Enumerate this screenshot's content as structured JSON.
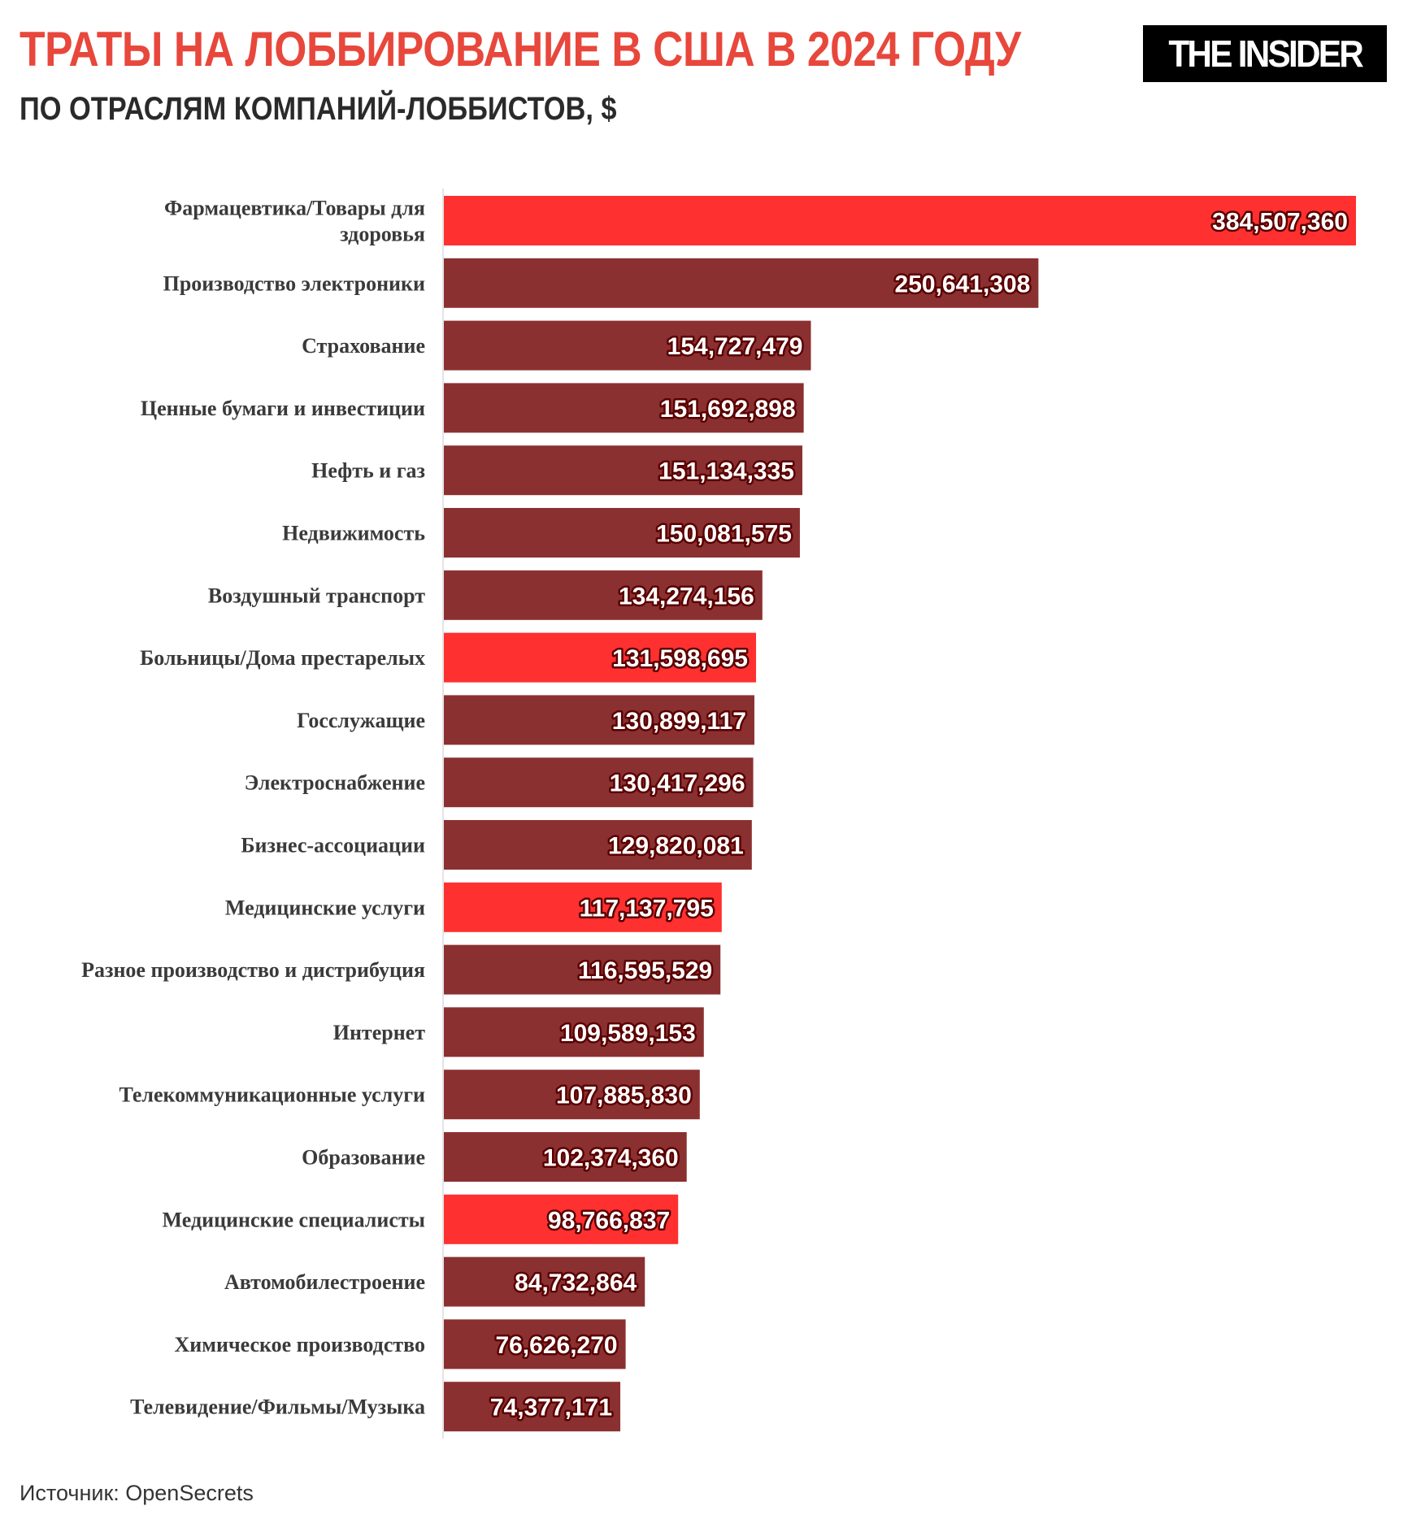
{
  "header": {
    "title": "ТРАТЫ НА ЛОББИРОВАНИЕ В США В 2024 ГОДУ",
    "subtitle": "ПО ОТРАСЛЯМ КОМПАНИЙ-ЛОББИСТОВ, $",
    "logo": "THE INSIDER"
  },
  "footer": {
    "source": "Источник: OpenSecrets"
  },
  "colors": {
    "title": "#e8473c",
    "highlight": "#ff3030",
    "default": "#8b3030"
  },
  "chart_data": {
    "type": "bar",
    "orientation": "horizontal",
    "title": "ТРАТЫ НА ЛОББИРОВАНИЕ В США В 2024 ГОДУ",
    "subtitle": "ПО ОТРАСЛЯМ КОМПАНИЙ-ЛОББИСТОВ, $",
    "grid": false,
    "categories": [
      [
        "Фармацевтика/Товары для",
        "здоровья"
      ],
      [
        "Производство электроники"
      ],
      [
        "Страхование"
      ],
      [
        "Ценные бумаги и инвестиции"
      ],
      [
        "Нефть и газ"
      ],
      [
        "Недвижимость"
      ],
      [
        "Воздушный транспорт"
      ],
      [
        "Больницы/Дома престарелых"
      ],
      [
        "Госслужащие"
      ],
      [
        "Электроснабжение"
      ],
      [
        "Бизнес-ассоциации"
      ],
      [
        "Медицинские услуги"
      ],
      [
        "Разное производство и дистрибуция"
      ],
      [
        "Интернет"
      ],
      [
        "Телекоммуникационные услуги"
      ],
      [
        "Образование"
      ],
      [
        "Медицинские специалисты"
      ],
      [
        "Автомобилестроение"
      ],
      [
        "Химическое производство"
      ],
      [
        "Телевидение/Фильмы/Музыка"
      ]
    ],
    "values": [
      384507360,
      250641308,
      154727479,
      151692898,
      151134335,
      150081575,
      134274156,
      131598695,
      130899117,
      130417296,
      129820081,
      117137795,
      116595529,
      109589153,
      107885830,
      102374360,
      98766837,
      84732864,
      76626270,
      74377171
    ],
    "labels": [
      "384,507,360",
      "250,641,308",
      "154,727,479",
      "151,692,898",
      "151,134,335",
      "150,081,575",
      "134,274,156",
      "131,598,695",
      "130,899,117",
      "130,417,296",
      "129,820,081",
      "117,137,795",
      "116,595,529",
      "109,589,153",
      "107,885,830",
      "102,374,360",
      "98,766,837",
      "84,732,864",
      "76,626,270",
      "74,377,171"
    ],
    "highlighted": [
      true,
      false,
      false,
      false,
      false,
      false,
      false,
      true,
      false,
      false,
      false,
      true,
      false,
      false,
      false,
      false,
      true,
      false,
      false,
      false
    ],
    "xlim": [
      0,
      384507360
    ]
  }
}
